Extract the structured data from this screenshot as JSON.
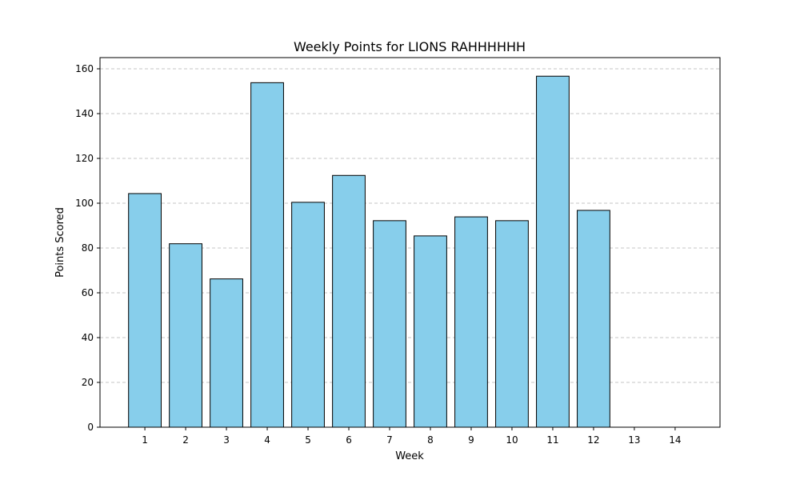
{
  "chart_data": {
    "type": "bar",
    "title": "Weekly Points for LIONS RAHHHHHH",
    "xlabel": "Week",
    "ylabel": "Points Scored",
    "categories": [
      "1",
      "2",
      "3",
      "4",
      "5",
      "6",
      "7",
      "8",
      "9",
      "10",
      "11",
      "12",
      "13",
      "14"
    ],
    "values": [
      104.3,
      81.9,
      66.2,
      153.8,
      100.4,
      112.4,
      92.2,
      85.4,
      93.9,
      92.2,
      156.7,
      96.8,
      0,
      0
    ],
    "ylim": [
      0,
      165
    ],
    "yticks": [
      0,
      20,
      40,
      60,
      80,
      100,
      120,
      140,
      160
    ],
    "grid": "y-dashed",
    "colors": {
      "bar_fill": "#87CEEB",
      "bar_edge": "#000000",
      "grid": "#c4c4c4"
    }
  }
}
